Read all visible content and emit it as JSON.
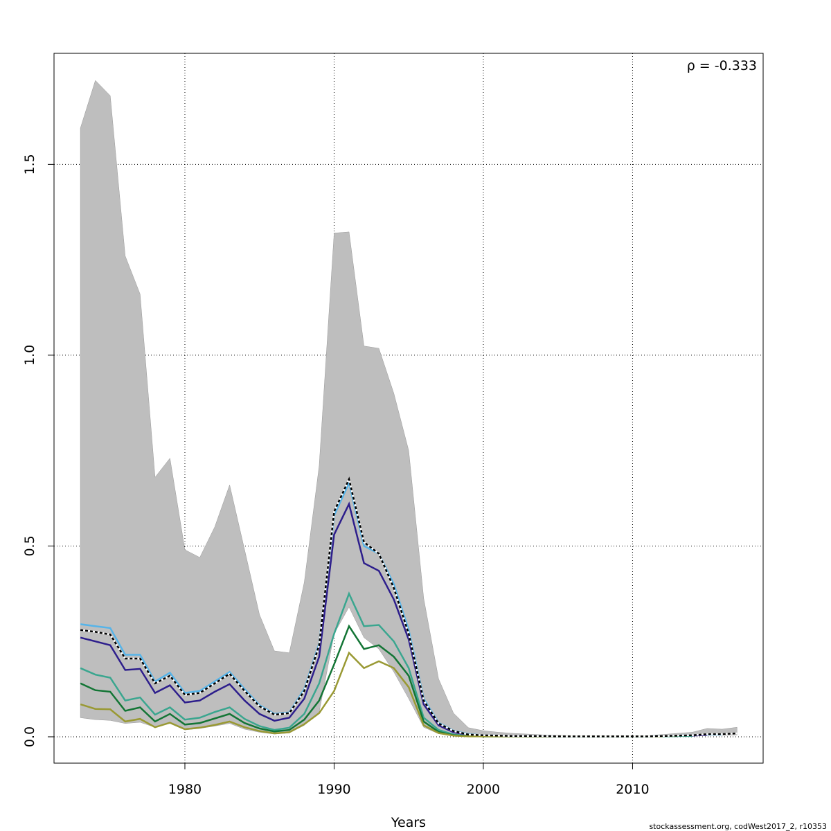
{
  "chart_data": {
    "type": "line",
    "annotation": "ρ = -0.333",
    "xlabel": "Years",
    "footer": "stockassessment.org, codWest2017_2, r10353",
    "x": [
      1973,
      1974,
      1975,
      1976,
      1977,
      1978,
      1979,
      1980,
      1981,
      1982,
      1983,
      1984,
      1985,
      1986,
      1987,
      1988,
      1989,
      1990,
      1991,
      1992,
      1993,
      1994,
      1995,
      1996,
      1997,
      1998,
      1999,
      2000,
      2001,
      2002,
      2003,
      2004,
      2005,
      2006,
      2007,
      2008,
      2009,
      2010,
      2011,
      2012,
      2013,
      2014,
      2015,
      2016,
      2017
    ],
    "xlim": [
      1971.23,
      2018.75
    ],
    "xticks": [
      1980,
      1990,
      2000,
      2010
    ],
    "ylim": [
      -0.069,
      1.791
    ],
    "yticks": [
      {
        "value": 0,
        "label": "0.0"
      },
      {
        "value": 0.5,
        "label": "0.5"
      },
      {
        "value": 1,
        "label": "1.0"
      },
      {
        "value": 1.5,
        "label": "1.5"
      }
    ],
    "grid": true,
    "band": {
      "color": "#bebebe",
      "upper": [
        1.595,
        1.72,
        1.68,
        1.26,
        1.16,
        0.68,
        0.73,
        0.49,
        0.47,
        0.55,
        0.66,
        0.49,
        0.32,
        0.225,
        0.22,
        0.405,
        0.71,
        1.32,
        1.323,
        1.024,
        1.018,
        0.9,
        0.75,
        0.363,
        0.152,
        0.062,
        0.024,
        0.016,
        0.012,
        0.009,
        0.007,
        0.005,
        0.004,
        0.003,
        0.003,
        0.003,
        0.003,
        0.003,
        0.003,
        0.006,
        0.009,
        0.012,
        0.022,
        0.02,
        0.025
      ],
      "lower": [
        0.05,
        0.045,
        0.043,
        0.035,
        0.038,
        0.025,
        0.035,
        0.018,
        0.022,
        0.028,
        0.035,
        0.02,
        0.012,
        0.007,
        0.01,
        0.03,
        0.065,
        0.27,
        0.34,
        0.26,
        0.23,
        0.17,
        0.1,
        0.025,
        0.008,
        0.003,
        0.001,
        0.001,
        0.001,
        0.001,
        0.001,
        0.001,
        0.001,
        0.001,
        0.001,
        0.001,
        0.001,
        0.001,
        0.001,
        0.002,
        0.002,
        0.003,
        0.004,
        0.004,
        0.005
      ]
    },
    "series": [
      {
        "color": "#56b4e9",
        "values": [
          0.295,
          0.29,
          0.285,
          0.215,
          0.215,
          0.145,
          0.168,
          0.115,
          0.12,
          0.145,
          0.17,
          0.125,
          0.083,
          0.06,
          0.064,
          0.125,
          0.245,
          0.58,
          0.665,
          0.5,
          0.48,
          0.4,
          0.28,
          0.1,
          0.037,
          0.016,
          0.007,
          0.004,
          0.003,
          0.002,
          0.002,
          0.002,
          0.001,
          0.001,
          0.001,
          0.001,
          0.001,
          0.001,
          0.001,
          0.002,
          0.003,
          0.004,
          0.006,
          0.006,
          null
        ]
      },
      {
        "color": "#2d1e8c",
        "values": [
          0.26,
          0.25,
          0.24,
          0.175,
          0.178,
          0.115,
          0.135,
          0.09,
          0.095,
          0.118,
          0.138,
          0.095,
          0.06,
          0.042,
          0.05,
          0.1,
          0.21,
          0.53,
          0.61,
          0.455,
          0.435,
          0.36,
          0.255,
          0.085,
          0.03,
          0.012,
          0.005,
          0.003,
          0.002,
          0.002,
          0.001,
          0.001,
          0.001,
          0.001,
          0.001,
          0.001,
          0.001,
          0.001,
          0.001,
          0.002,
          0.002,
          0.003,
          0.005,
          null,
          null
        ]
      },
      {
        "color": "#3aa68f",
        "values": [
          0.18,
          0.163,
          0.155,
          0.095,
          0.103,
          0.058,
          0.077,
          0.045,
          0.05,
          0.065,
          0.077,
          0.047,
          0.028,
          0.018,
          0.024,
          0.06,
          0.14,
          0.27,
          0.375,
          0.29,
          0.293,
          0.25,
          0.18,
          0.05,
          0.018,
          0.006,
          0.002,
          0.001,
          0.001,
          0.001,
          0.001,
          0.001,
          0.001,
          0.001,
          0.001,
          0.001,
          0.001,
          0.001,
          0.001,
          0.001,
          0.002,
          0.002,
          null,
          null,
          null
        ]
      },
      {
        "color": "#137535",
        "values": [
          0.14,
          0.122,
          0.118,
          0.068,
          0.077,
          0.04,
          0.06,
          0.032,
          0.036,
          0.048,
          0.06,
          0.036,
          0.022,
          0.014,
          0.018,
          0.045,
          0.095,
          0.19,
          0.29,
          0.23,
          0.24,
          0.21,
          0.16,
          0.04,
          0.013,
          0.004,
          0.002,
          0.001,
          0.001,
          0.001,
          0.001,
          0.001,
          0.001,
          0.001,
          0.001,
          0.001,
          0.001,
          0.001,
          0.001,
          0.002,
          0.002,
          null,
          null,
          null,
          null
        ]
      },
      {
        "color": "#999933",
        "values": [
          0.085,
          0.073,
          0.072,
          0.04,
          0.047,
          0.025,
          0.037,
          0.02,
          0.024,
          0.031,
          0.04,
          0.025,
          0.015,
          0.009,
          0.012,
          0.033,
          0.062,
          0.12,
          0.22,
          0.18,
          0.198,
          0.18,
          0.13,
          0.03,
          0.01,
          0.003,
          0.001,
          0.001,
          0.001,
          0.001,
          0.001,
          0.001,
          0.001,
          0.001,
          0.001,
          0.001,
          0.001,
          0.001,
          0.001,
          0.001,
          null,
          null,
          null,
          null,
          null
        ]
      },
      {
        "color": "#000000",
        "dashed": true,
        "values": [
          0.28,
          0.275,
          0.268,
          0.205,
          0.205,
          0.14,
          0.16,
          0.11,
          0.115,
          0.14,
          0.165,
          0.12,
          0.08,
          0.058,
          0.062,
          0.12,
          0.24,
          0.59,
          0.675,
          0.51,
          0.48,
          0.39,
          0.27,
          0.095,
          0.035,
          0.015,
          0.006,
          0.004,
          0.003,
          0.002,
          0.002,
          0.002,
          0.001,
          0.001,
          0.001,
          0.001,
          0.001,
          0.001,
          0.001,
          0.002,
          0.003,
          0.004,
          0.007,
          0.007,
          0.009
        ]
      }
    ]
  }
}
